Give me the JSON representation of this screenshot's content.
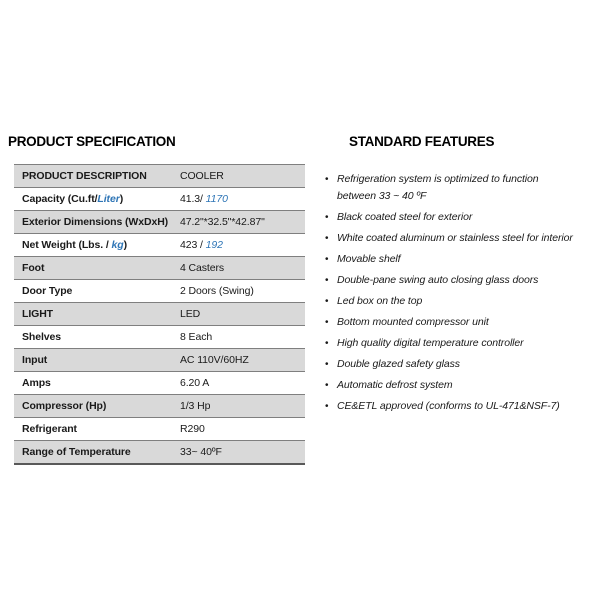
{
  "colors": {
    "accent_blue": "#2E75B6",
    "row_shade": "#D9D9D9",
    "border_gray": "#7F7F7F",
    "border_dark": "#595959",
    "text": "#1A1A1A"
  },
  "left": {
    "title": "PRODUCT SPECIFICATION",
    "table": {
      "rows": [
        {
          "shaded": true,
          "label": [
            {
              "t": "PRODUCT DESCRIPTION"
            }
          ],
          "value": [
            {
              "t": "COOLER"
            }
          ]
        },
        {
          "shaded": false,
          "label": [
            {
              "t": "Capacity (Cu.ft/"
            },
            {
              "t": "Liter",
              "s": "accent"
            },
            {
              "t": ")"
            }
          ],
          "value": [
            {
              "t": "41.3/ "
            },
            {
              "t": "1170",
              "s": "accent"
            }
          ]
        },
        {
          "shaded": true,
          "label": [
            {
              "t": "Exterior Dimensions (WxDxH)"
            }
          ],
          "value": [
            {
              "t": "47.2\"*32.5\"*42.87\""
            }
          ]
        },
        {
          "shaded": false,
          "label": [
            {
              "t": "Net Weight (Lbs. / "
            },
            {
              "t": "kg",
              "s": "accent"
            },
            {
              "t": ")"
            }
          ],
          "value": [
            {
              "t": "423 / "
            },
            {
              "t": "192",
              "s": "accent"
            }
          ]
        },
        {
          "shaded": true,
          "label": [
            {
              "t": "Foot"
            }
          ],
          "value": [
            {
              "t": "4 Casters"
            }
          ]
        },
        {
          "shaded": false,
          "label": [
            {
              "t": "Door Type"
            }
          ],
          "value": [
            {
              "t": "2 Doors (Swing)"
            }
          ]
        },
        {
          "shaded": true,
          "label": [
            {
              "t": "LIGHT"
            }
          ],
          "value": [
            {
              "t": "LED"
            }
          ]
        },
        {
          "shaded": false,
          "label": [
            {
              "t": "Shelves"
            }
          ],
          "value": [
            {
              "t": "8 Each"
            }
          ]
        },
        {
          "shaded": true,
          "label": [
            {
              "t": "Input"
            }
          ],
          "value": [
            {
              "t": "AC 110V/60HZ"
            }
          ]
        },
        {
          "shaded": false,
          "label": [
            {
              "t": "Amps"
            }
          ],
          "value": [
            {
              "t": "6.20 A"
            }
          ]
        },
        {
          "shaded": true,
          "label": [
            {
              "t": "Compressor (Hp)"
            }
          ],
          "value": [
            {
              "t": "1/3 Hp"
            }
          ]
        },
        {
          "shaded": false,
          "label": [
            {
              "t": "Refrigerant"
            }
          ],
          "value": [
            {
              "t": "R290"
            }
          ]
        },
        {
          "shaded": true,
          "label": [
            {
              "t": "Range of Temperature"
            }
          ],
          "value": [
            {
              "t": "33~ 40ºF"
            }
          ]
        }
      ]
    }
  },
  "right": {
    "title": "STANDARD FEATURES",
    "bullet_glyph": "•",
    "features": [
      "Refrigeration system is optimized to function\nbetween 33 ~ 40 ºF",
      "Black coated steel for exterior",
      "White coated aluminum or stainless steel for interior",
      "Movable shelf",
      "Double-pane swing auto closing glass doors",
      "Led box on the top",
      "Bottom mounted compressor unit",
      "High quality digital temperature controller",
      "Double glazed safety glass",
      "Automatic defrost system",
      "CE&ETL approved (conforms to UL-471&NSF-7)"
    ]
  }
}
